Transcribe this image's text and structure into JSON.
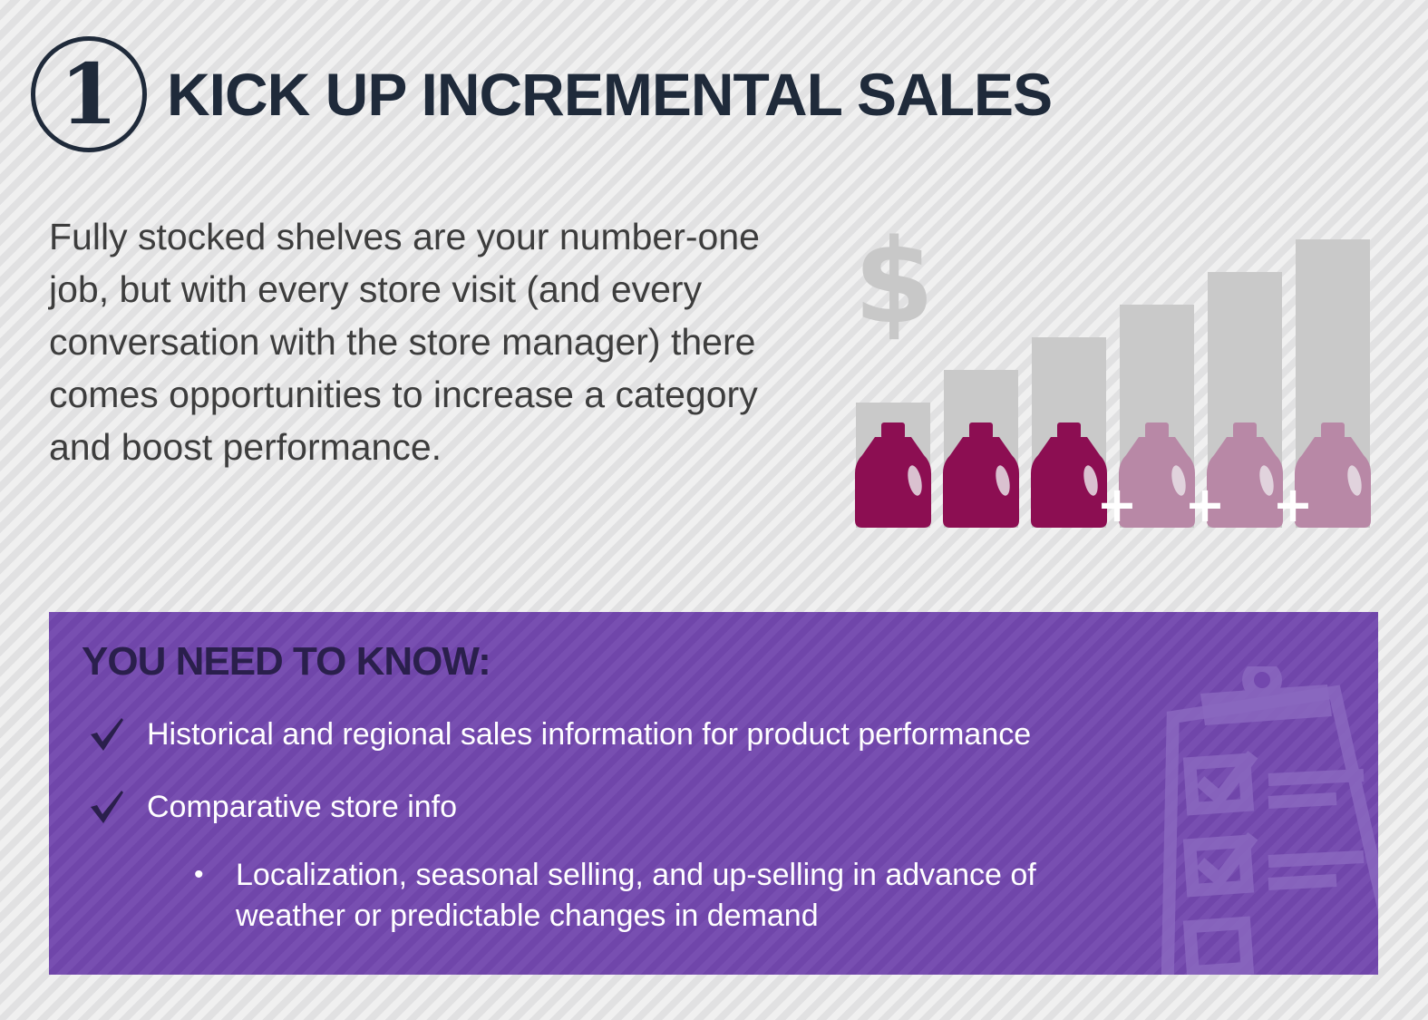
{
  "header": {
    "step_number": "1",
    "title": "KICK UP INCREMENTAL SALES"
  },
  "intro": {
    "text": "Fully stocked shelves are your number-one job, but with every store visit (and every conversation with the store manager) there comes opportunities to increase a category and boost performance."
  },
  "illustration": {
    "currency_symbol": "$",
    "bar_levels": [
      1,
      2,
      3,
      4,
      5,
      6
    ],
    "bottles": [
      {
        "style": "solid"
      },
      {
        "style": "solid"
      },
      {
        "style": "solid"
      },
      {
        "style": "faded-plus"
      },
      {
        "style": "faded-plus"
      },
      {
        "style": "faded-plus"
      }
    ],
    "plus_symbol": "+"
  },
  "know_panel": {
    "heading": "YOU NEED TO KNOW:",
    "items": [
      {
        "label": "Historical and regional sales information for product performance"
      },
      {
        "label": "Comparative store info"
      }
    ],
    "sub_items": [
      {
        "label": "Localization, seasonal selling, and up-selling in advance of weather or predictable changes in demand"
      }
    ],
    "bullet": "•"
  },
  "colors": {
    "title": "#1f2a3a",
    "body_text": "#3d3d3d",
    "panel_background": "#7348ae",
    "panel_heading": "#2a1f4c",
    "bottle_solid": "#8c0e52",
    "bottle_faded": "#b888a6",
    "bars": "#c9c9c9"
  }
}
